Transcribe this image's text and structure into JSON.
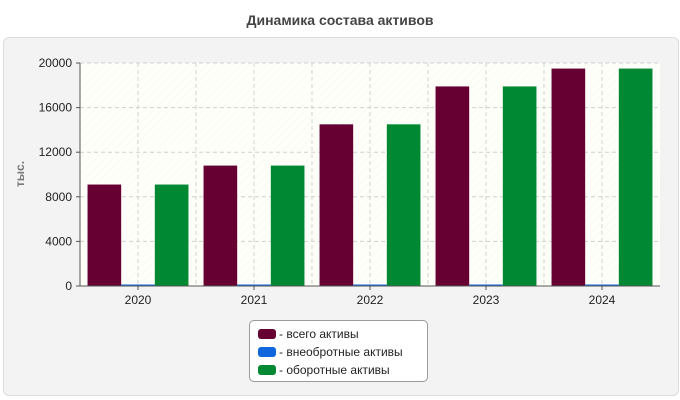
{
  "chart_data": {
    "type": "bar",
    "title": "Динамика состава активов",
    "ylabel": "тыс.",
    "xlabel": "",
    "categories": [
      "2020",
      "2021",
      "2022",
      "2023",
      "2024"
    ],
    "ylim": [
      0,
      20000
    ],
    "yticks": [
      0,
      4000,
      8000,
      12000,
      16000,
      20000
    ],
    "grid": true,
    "legend_position": "bottom",
    "series": [
      {
        "name": "- всего активы",
        "color": "#660033",
        "values": [
          9100,
          10800,
          14500,
          17900,
          19500
        ]
      },
      {
        "name": "- внеобротные активы",
        "color": "#1166dd",
        "values": [
          100,
          100,
          100,
          100,
          100
        ]
      },
      {
        "name": "- оборотные активы",
        "color": "#008833",
        "values": [
          9100,
          10800,
          14500,
          17900,
          19500
        ]
      }
    ]
  }
}
